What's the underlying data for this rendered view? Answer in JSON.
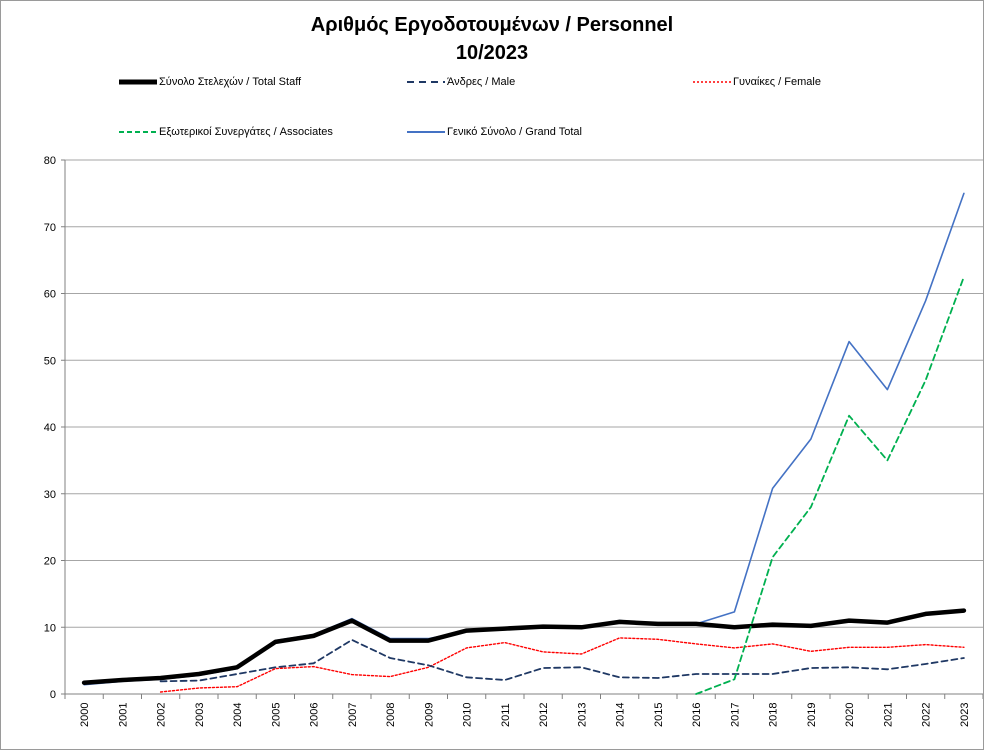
{
  "chart_data": {
    "type": "line",
    "title": "Αριθμός Εργοδοτουμένων / Personnel",
    "subtitle": "10/2023",
    "xlabel": "",
    "ylabel": "",
    "x": [
      "2000",
      "2001",
      "2002",
      "2003",
      "2004",
      "2005",
      "2006",
      "2007",
      "2008",
      "2009",
      "2010",
      "2011",
      "2012",
      "2013",
      "2014",
      "2015",
      "2016",
      "2017",
      "2018",
      "2019",
      "2020",
      "2021",
      "2022",
      "2023"
    ],
    "ylim": [
      0,
      80
    ],
    "yticks": [
      "0",
      "10",
      "20",
      "30",
      "40",
      "50",
      "60",
      "70",
      "80"
    ],
    "grid": "horizontal",
    "legend_position": "top",
    "series": [
      {
        "name": "Σύνολο Στελεχών / Total Staff",
        "color": "#000000",
        "style": "solid-thick",
        "values": [
          1.7,
          2.1,
          2.4,
          3.0,
          4.0,
          7.8,
          8.7,
          11.0,
          8.0,
          8.0,
          9.5,
          9.8,
          10.1,
          10.0,
          10.8,
          10.5,
          10.5,
          10.0,
          10.4,
          10.2,
          11.0,
          10.7,
          12.0,
          12.5
        ]
      },
      {
        "name": "Άνδρες / Male",
        "color": "#1f3864",
        "style": "dashed",
        "values": [
          null,
          null,
          1.9,
          2.0,
          3.0,
          4.0,
          4.6,
          8.1,
          5.4,
          4.3,
          2.5,
          2.1,
          3.9,
          4.0,
          2.5,
          2.4,
          3.0,
          3.0,
          3.0,
          3.9,
          4.0,
          3.7,
          4.5,
          5.4
        ]
      },
      {
        "name": "Γυναίκες / Female",
        "color": "#ff0000",
        "style": "dotted",
        "values": [
          null,
          null,
          0.3,
          0.9,
          1.1,
          3.8,
          4.1,
          2.9,
          2.6,
          4.0,
          6.9,
          7.7,
          6.3,
          6.0,
          8.4,
          8.2,
          7.5,
          6.9,
          7.5,
          6.4,
          7.0,
          7.0,
          7.4,
          7.0
        ]
      },
      {
        "name": "Εξωτερικοί Συνεργάτες / Associates",
        "color": "#00b050",
        "style": "dashed",
        "values": [
          null,
          null,
          null,
          null,
          null,
          null,
          null,
          null,
          null,
          null,
          null,
          null,
          null,
          null,
          null,
          null,
          0.0,
          2.2,
          20.5,
          28.0,
          41.7,
          35.0,
          47.0,
          62.5
        ]
      },
      {
        "name": "Γενικό Σύνολο / Grand Total",
        "color": "#4472c4",
        "style": "solid",
        "values": [
          1.4,
          1.9,
          2.2,
          2.8,
          3.8,
          8.0,
          8.9,
          11.3,
          8.3,
          8.3,
          9.4,
          9.7,
          10.0,
          10.0,
          11.0,
          10.6,
          10.5,
          12.3,
          30.8,
          38.2,
          52.8,
          45.6,
          58.9,
          75.0
        ]
      }
    ]
  }
}
